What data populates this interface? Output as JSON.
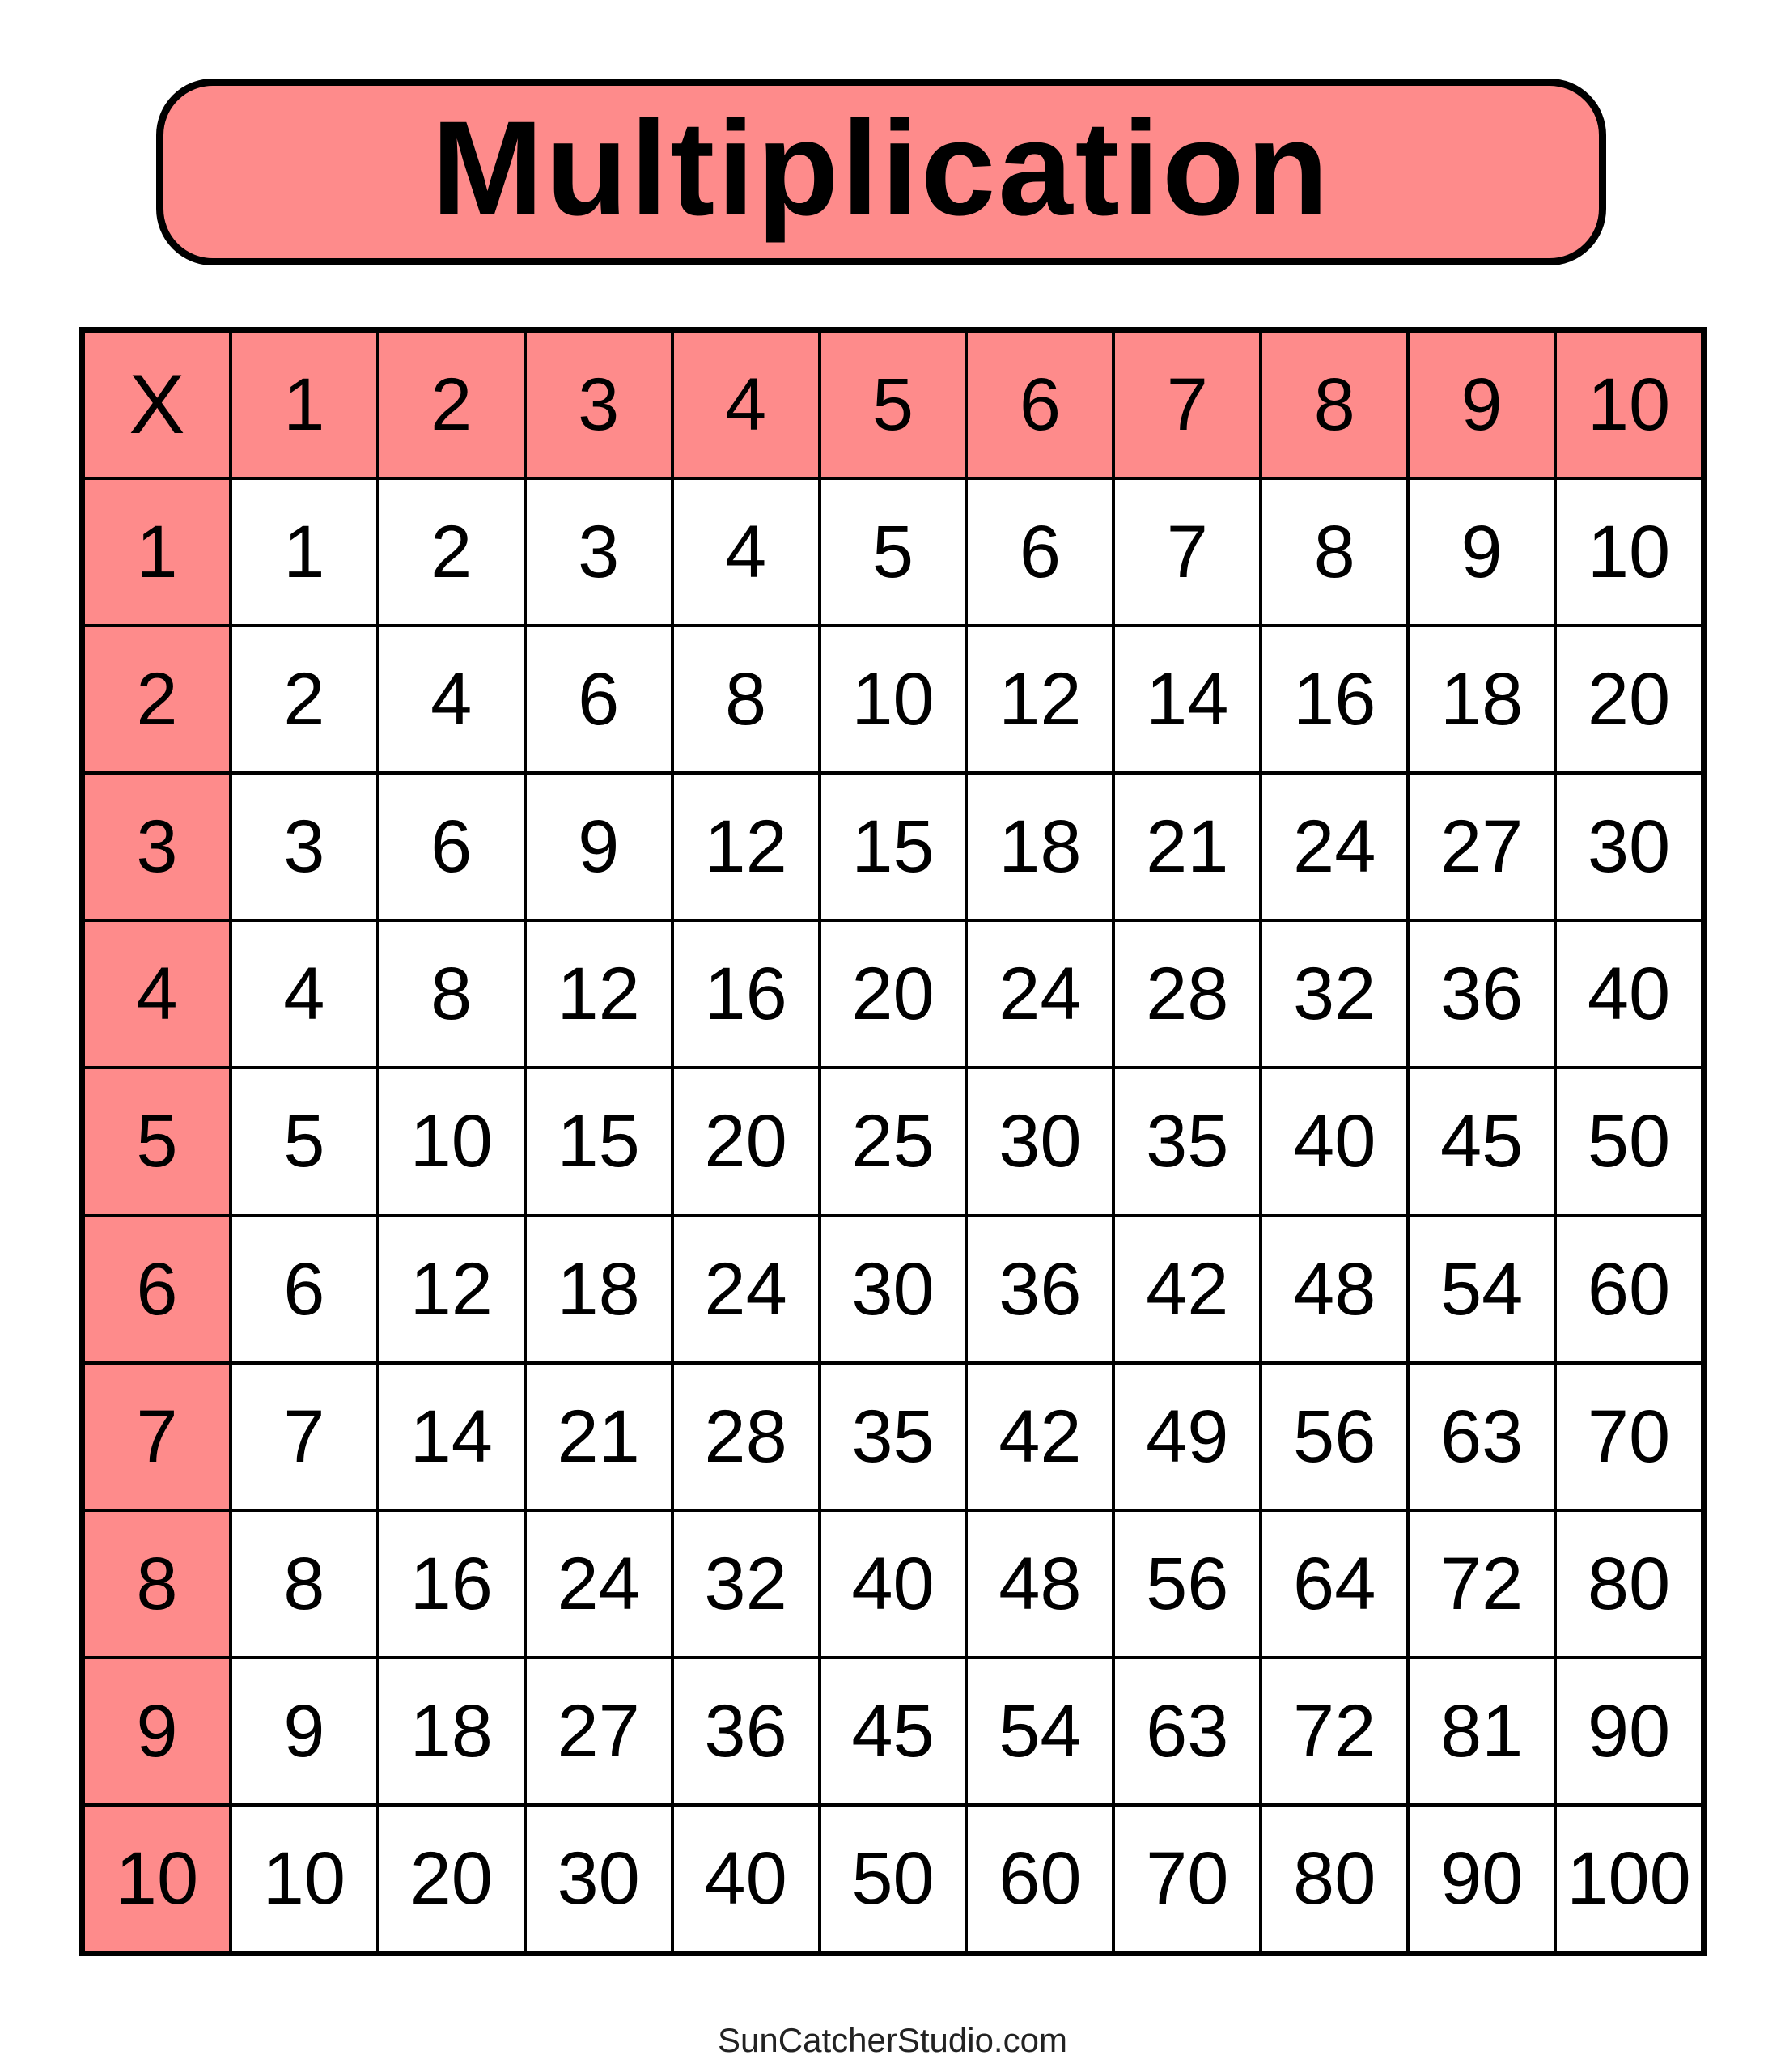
{
  "title": "Multiplication",
  "accent_color": "#FE8B8B",
  "table": {
    "corner": "X",
    "column_headers": [
      "1",
      "2",
      "3",
      "4",
      "5",
      "6",
      "7",
      "8",
      "9",
      "10"
    ],
    "rows": [
      {
        "header": "1",
        "values": [
          "1",
          "2",
          "3",
          "4",
          "5",
          "6",
          "7",
          "8",
          "9",
          "10"
        ]
      },
      {
        "header": "2",
        "values": [
          "2",
          "4",
          "6",
          "8",
          "10",
          "12",
          "14",
          "16",
          "18",
          "20"
        ]
      },
      {
        "header": "3",
        "values": [
          "3",
          "6",
          "9",
          "12",
          "15",
          "18",
          "21",
          "24",
          "27",
          "30"
        ]
      },
      {
        "header": "4",
        "values": [
          "4",
          "8",
          "12",
          "16",
          "20",
          "24",
          "28",
          "32",
          "36",
          "40"
        ]
      },
      {
        "header": "5",
        "values": [
          "5",
          "10",
          "15",
          "20",
          "25",
          "30",
          "35",
          "40",
          "45",
          "50"
        ]
      },
      {
        "header": "6",
        "values": [
          "6",
          "12",
          "18",
          "24",
          "30",
          "36",
          "42",
          "48",
          "54",
          "60"
        ]
      },
      {
        "header": "7",
        "values": [
          "7",
          "14",
          "21",
          "28",
          "35",
          "42",
          "49",
          "56",
          "63",
          "70"
        ]
      },
      {
        "header": "8",
        "values": [
          "8",
          "16",
          "24",
          "32",
          "40",
          "48",
          "56",
          "64",
          "72",
          "80"
        ]
      },
      {
        "header": "9",
        "values": [
          "9",
          "18",
          "27",
          "36",
          "45",
          "54",
          "63",
          "72",
          "81",
          "90"
        ]
      },
      {
        "header": "10",
        "values": [
          "10",
          "20",
          "30",
          "40",
          "50",
          "60",
          "70",
          "80",
          "90",
          "100"
        ]
      }
    ]
  },
  "footer": "SunCatcherStudio.com"
}
